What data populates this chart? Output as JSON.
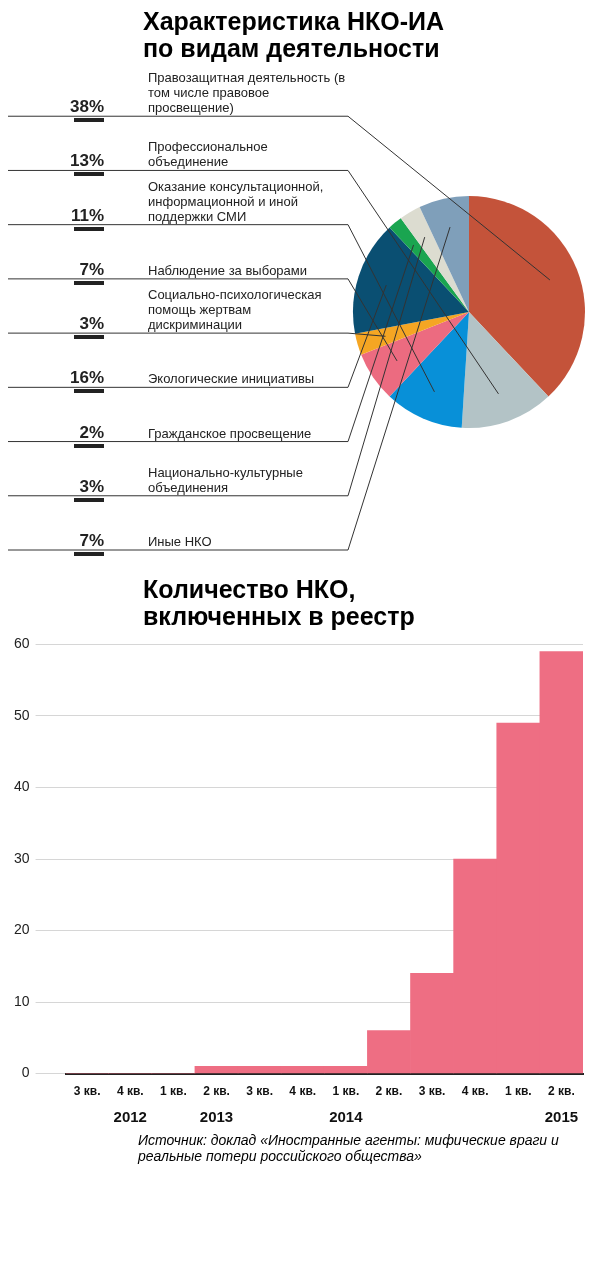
{
  "chart_data": [
    {
      "type": "pie",
      "title": "Характеристика НКО-ИА по видам деятельности",
      "categories": [
        "Правозащитная деятельность (в том числе правовое просвещение)",
        "Профессиональное объединение",
        "Оказание консультационной, информационной и иной поддержки СМИ",
        "Наблюдение за выборами",
        "Социально-психологическая помощь жертвам дискриминации",
        "Экологические инициативы",
        "Гражданское просвещение",
        "Национально-культурные объединения",
        "Иные НКО"
      ],
      "values": [
        38,
        13,
        11,
        7,
        3,
        16,
        2,
        3,
        7
      ],
      "value_labels": [
        "38%",
        "13%",
        "11%",
        "7%",
        "3%",
        "16%",
        "2%",
        "3%",
        "7%"
      ],
      "colors": [
        "#c4533a",
        "#b3c3c6",
        "#0890d8",
        "#ec6b80",
        "#f5a623",
        "#0a4f72",
        "#1aa550",
        "#dcdcd0",
        "#7f9fba"
      ]
    },
    {
      "type": "bar",
      "title": "Количество НКО, включенных в реестр",
      "categories": [
        "3 кв.",
        "4 кв.",
        "1 кв.",
        "2 кв.",
        "3 кв.",
        "4 кв.",
        "1 кв.",
        "2 кв.",
        "3 кв.",
        "4 кв.",
        "1 кв.",
        "2 кв."
      ],
      "values": [
        0,
        0,
        0,
        1,
        1,
        1,
        1,
        6,
        14,
        30,
        49,
        59
      ],
      "color": "#ee6e83",
      "ylim": [
        0,
        60
      ],
      "yticks": [
        0,
        10,
        20,
        30,
        40,
        50,
        60
      ],
      "grid": "y",
      "annotations": [
        "2012",
        "2013",
        "2014",
        "2015",
        "Источник: доклад «Иностранные агенты: мифические враги и реальные потери российского общества»"
      ]
    }
  ]
}
